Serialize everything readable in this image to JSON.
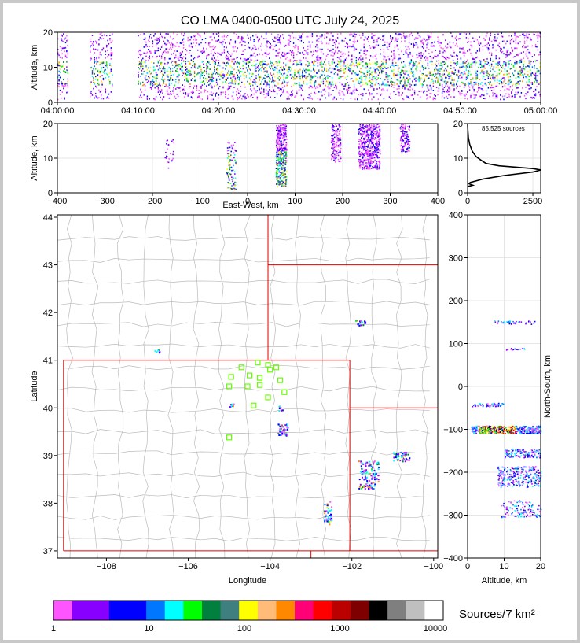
{
  "title": "CO LMA 0400-0500 UTC July 24, 2025",
  "colors": {
    "frame": "#c8c8c8",
    "state_line": "#dd0000",
    "county_line": "#bbbbbb"
  },
  "panels": {
    "time_height": {
      "ylabel": "Altitude, km",
      "xticks": [
        "04:00:00",
        "04:10:00",
        "04:20:00",
        "04:30:00",
        "04:40:00",
        "04:50:00",
        "05:00:00"
      ],
      "yticks": [
        "0",
        "10",
        "20"
      ]
    },
    "ew_height": {
      "ylabel": "Altitude, km",
      "xlabel": "East-West, km",
      "xticks": [
        "−400",
        "−300",
        "−200",
        "−100",
        "0",
        "100",
        "200",
        "300",
        "400"
      ],
      "yticks": [
        "0",
        "10",
        "20"
      ]
    },
    "histogram": {
      "annotation": "85,525 sources",
      "xticks": [
        "0",
        "2500"
      ],
      "yticks": [
        "0",
        "10",
        "20"
      ]
    },
    "plan": {
      "xlabel": "Longitude",
      "ylabel": "Latitude",
      "xticks": [
        "−108",
        "−106",
        "−104",
        "−102",
        "−100"
      ],
      "yticks": [
        "37",
        "38",
        "39",
        "40",
        "41",
        "42",
        "43",
        "44"
      ]
    },
    "ns_height": {
      "xlabel": "Altitude, km",
      "ylabel": "North-South, km",
      "xticks": [
        "0",
        "10",
        "20"
      ],
      "yticks": [
        "400",
        "300",
        "200",
        "100",
        "0",
        "−100",
        "−200",
        "−300",
        "−400"
      ]
    }
  },
  "colorbar": {
    "label": "Sources/7 km²",
    "ticks": [
      "1",
      "10",
      "100",
      "1000",
      "10000"
    ],
    "colors": [
      "#ff55ff",
      "#8800ff",
      "#8800ff",
      "#0000ff",
      "#0000ff",
      "#0077ff",
      "#00ffff",
      "#00ff00",
      "#007f3f",
      "#3f7f7f",
      "#ffff00",
      "#ffbb77",
      "#ff8800",
      "#ff0077",
      "#ff0000",
      "#bb0000",
      "#7f0000",
      "#000000",
      "#7f7f7f",
      "#bfbfbf",
      "#ffffff"
    ]
  },
  "chart_data": [
    {
      "type": "heatmap",
      "panel": "time_height",
      "xlabel": "",
      "ylabel": "Altitude, km",
      "x_range": [
        "04:00:00",
        "05:00:00"
      ],
      "ylim": [
        0,
        20
      ],
      "activity_minutes": [
        [
          0,
          1.5
        ],
        [
          4,
          7
        ],
        [
          10,
          60
        ]
      ],
      "peak_altitude_km": [
        5,
        12
      ]
    },
    {
      "type": "heatmap",
      "panel": "ew_height",
      "xlabel": "East-West, km",
      "ylabel": "Altitude, km",
      "xlim": [
        -400,
        400
      ],
      "ylim": [
        0,
        20
      ],
      "clusters_km": [
        {
          "ew": -165,
          "alt": [
            7,
            16
          ]
        },
        {
          "ew": -35,
          "alt": [
            1,
            15
          ]
        },
        {
          "ew": 70,
          "alt": [
            2,
            20
          ]
        },
        {
          "ew": 185,
          "alt": [
            9,
            20
          ]
        },
        {
          "ew": 255,
          "alt": [
            7,
            20
          ]
        },
        {
          "ew": 330,
          "alt": [
            12,
            20
          ]
        }
      ]
    },
    {
      "type": "line",
      "panel": "histogram",
      "annotation": "85,525 sources",
      "xlim": [
        0,
        2800
      ],
      "ylim": [
        0,
        20
      ],
      "points": [
        [
          0,
          1.8
        ],
        [
          200,
          2.2
        ],
        [
          60,
          2.6
        ],
        [
          100,
          3
        ],
        [
          600,
          4
        ],
        [
          1400,
          5
        ],
        [
          2500,
          6
        ],
        [
          2800,
          6.6
        ],
        [
          2500,
          7
        ],
        [
          1200,
          7.8
        ],
        [
          700,
          8.5
        ],
        [
          500,
          9.5
        ],
        [
          320,
          10.5
        ],
        [
          180,
          12
        ],
        [
          80,
          14
        ],
        [
          30,
          16
        ],
        [
          10,
          18
        ],
        [
          0,
          20
        ]
      ]
    },
    {
      "type": "heatmap",
      "panel": "plan",
      "xlabel": "Longitude",
      "ylabel": "Latitude",
      "xlim": [
        -109.2,
        -99.9
      ],
      "ylim": [
        36.85,
        44.05
      ],
      "clusters": [
        {
          "lon": -106.75,
          "lat": 41.2
        },
        {
          "lon": -101.8,
          "lat": 41.8
        },
        {
          "lon": -104.95,
          "lat": 40.05
        },
        {
          "lon": -103.75,
          "lat": 40.0
        },
        {
          "lon": -103.7,
          "lat": 39.55
        },
        {
          "lon": -101.6,
          "lat": 38.6
        },
        {
          "lon": -100.8,
          "lat": 38.98
        },
        {
          "lon": -102.6,
          "lat": 37.8
        }
      ],
      "stations": [
        [
          -104.3,
          40.95
        ],
        [
          -104.05,
          40.9
        ],
        [
          -103.85,
          40.85
        ],
        [
          -104.7,
          40.85
        ],
        [
          -104.0,
          40.8
        ],
        [
          -104.95,
          40.65
        ],
        [
          -104.5,
          40.68
        ],
        [
          -104.25,
          40.63
        ],
        [
          -103.75,
          40.58
        ],
        [
          -105.0,
          40.45
        ],
        [
          -104.55,
          40.45
        ],
        [
          -104.25,
          40.48
        ],
        [
          -103.65,
          40.33
        ],
        [
          -104.05,
          40.22
        ],
        [
          -104.4,
          40.05
        ],
        [
          -105.0,
          39.38
        ]
      ]
    },
    {
      "type": "heatmap",
      "panel": "ns_height",
      "xlabel": "Altitude, km",
      "ylabel": "North-South, km",
      "xlim": [
        0,
        20
      ],
      "ylim": [
        -400,
        400
      ],
      "clusters_km": [
        {
          "ns": 150,
          "alt": [
            7,
            19
          ]
        },
        {
          "ns": 88,
          "alt": [
            10,
            16
          ]
        },
        {
          "ns": -42,
          "alt": [
            1,
            10
          ]
        },
        {
          "ns": -100,
          "alt": [
            1,
            20
          ]
        },
        {
          "ns": -155,
          "alt": [
            10,
            20
          ]
        },
        {
          "ns": -210,
          "alt": [
            8,
            20
          ]
        },
        {
          "ns": -285,
          "alt": [
            9,
            20
          ]
        }
      ]
    }
  ]
}
